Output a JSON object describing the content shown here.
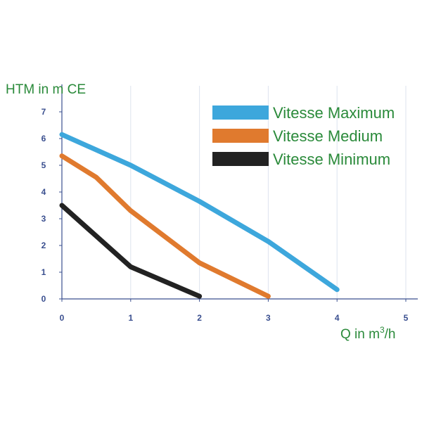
{
  "chart_data": {
    "type": "line",
    "ylabel": "HTM in m CE",
    "xlabel": "Q in m³/h",
    "xlim": [
      0,
      5
    ],
    "ylim": [
      0,
      7
    ],
    "xticks": [
      "0",
      "1",
      "2",
      "3",
      "4",
      "5"
    ],
    "yticks": [
      "0",
      "1",
      "2",
      "3",
      "4",
      "5",
      "6",
      "7"
    ],
    "grid": "vertical",
    "legend_position": "top-right",
    "series": [
      {
        "name": "Vitesse Maximum",
        "color": "#3da7dc",
        "points": [
          [
            0,
            6.15
          ],
          [
            1,
            5.0
          ],
          [
            2,
            3.65
          ],
          [
            3,
            2.15
          ],
          [
            4,
            0.35
          ]
        ]
      },
      {
        "name": "Vitesse Medium",
        "color": "#e07a2e",
        "points": [
          [
            0,
            5.35
          ],
          [
            0.5,
            4.55
          ],
          [
            1,
            3.3
          ],
          [
            2,
            1.35
          ],
          [
            3,
            0.1
          ]
        ]
      },
      {
        "name": "Vitesse Minimum",
        "color": "#222222",
        "points": [
          [
            0,
            3.5
          ],
          [
            1,
            1.2
          ],
          [
            2,
            0.1
          ]
        ]
      }
    ]
  }
}
